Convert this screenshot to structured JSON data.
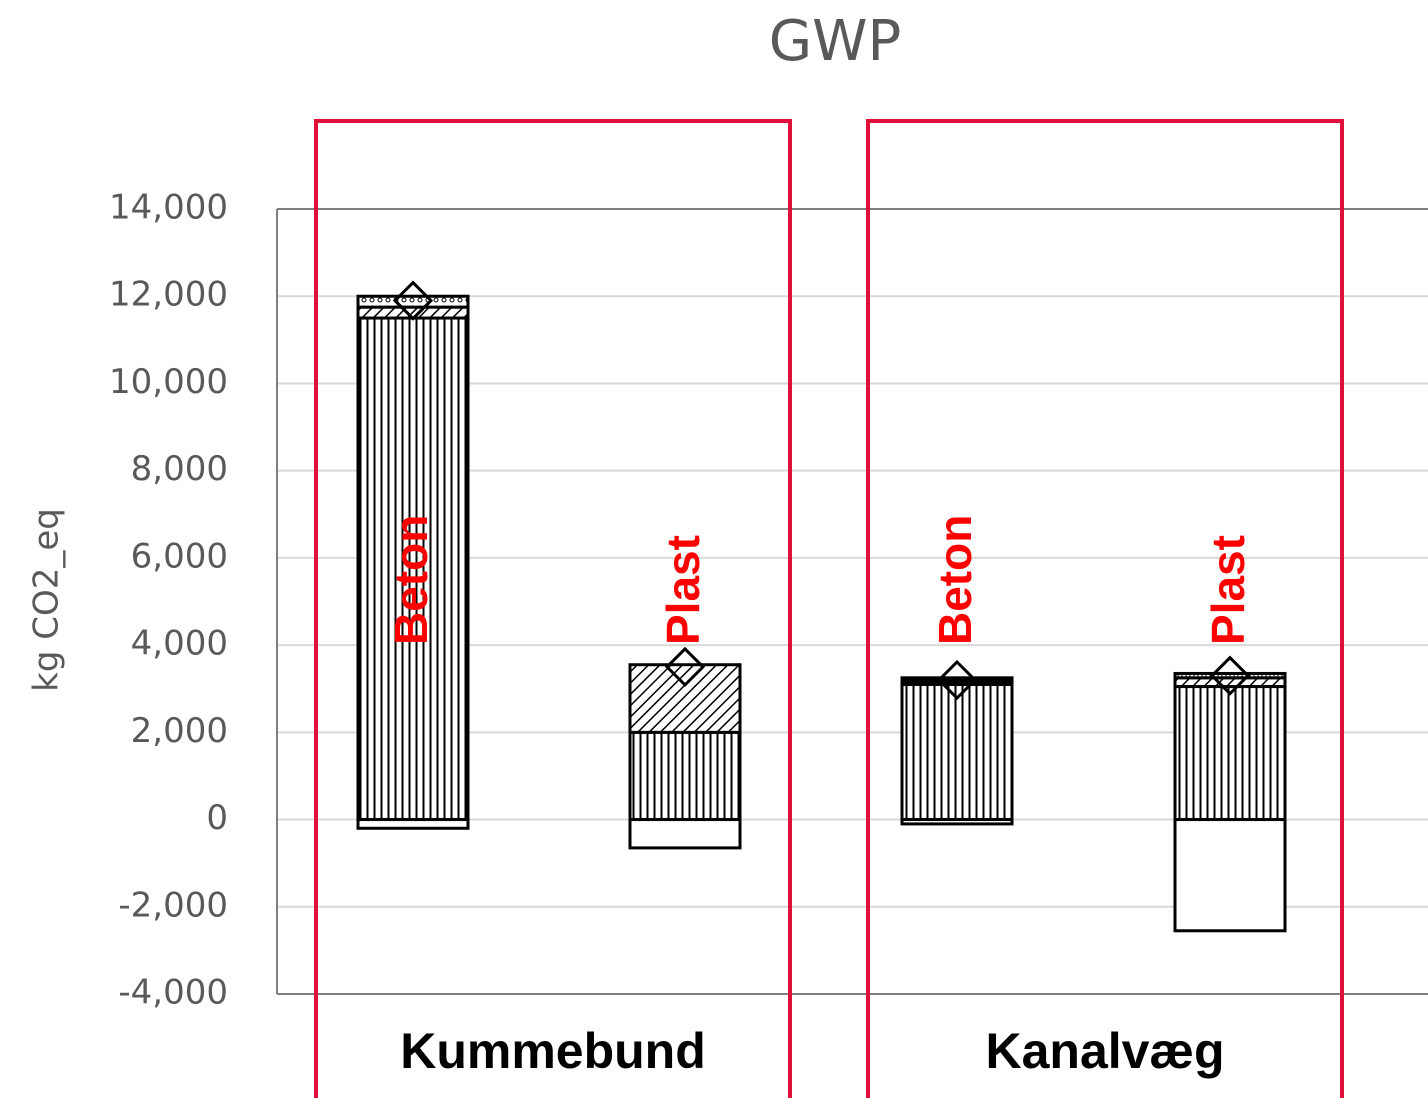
{
  "chart_data": {
    "type": "bar",
    "stacked": true,
    "title": "GWP",
    "y_label": "kg CO2_eq",
    "groups": [
      "Kummebund",
      "Kanalvæg"
    ],
    "categories": [
      "Beton",
      "Plast",
      "Beton",
      "Plast"
    ],
    "category_color": "#ff0000",
    "series": [
      {
        "pattern": "vertical",
        "color": "#000000",
        "values": [
          11500,
          2000,
          3100,
          3050
        ]
      },
      {
        "pattern": "diagonal",
        "color": "#000000",
        "values": [
          250,
          1550,
          0,
          200
        ]
      },
      {
        "pattern": "dots",
        "color": "#000000",
        "values": [
          250,
          0,
          0,
          100
        ]
      },
      {
        "pattern": "solid",
        "color": "#000000",
        "values": [
          0,
          0,
          150,
          0
        ]
      },
      {
        "pattern": "none",
        "color": "#000000",
        "values": [
          -200,
          -650,
          -100,
          -2550
        ]
      },
      {
        "type": "marker",
        "marker": "diamond",
        "color": "#000000",
        "values": [
          11900,
          3500,
          3200,
          3300
        ]
      }
    ],
    "ylim": [
      -4000,
      14000
    ],
    "yticks": [
      {
        "value": -4000,
        "label": "-4,000"
      },
      {
        "value": -2000,
        "label": "-2,000"
      },
      0,
      {
        "value": 2000,
        "label": "2,000"
      },
      {
        "value": 4000,
        "label": "4,000"
      },
      {
        "value": 6000,
        "label": "6,000"
      },
      {
        "value": 8000,
        "label": "8,000"
      },
      {
        "value": 10000,
        "label": "10,000"
      },
      {
        "value": 12000,
        "label": "12,000"
      },
      {
        "value": 14000,
        "label": "14,000"
      }
    ],
    "grid": true
  }
}
